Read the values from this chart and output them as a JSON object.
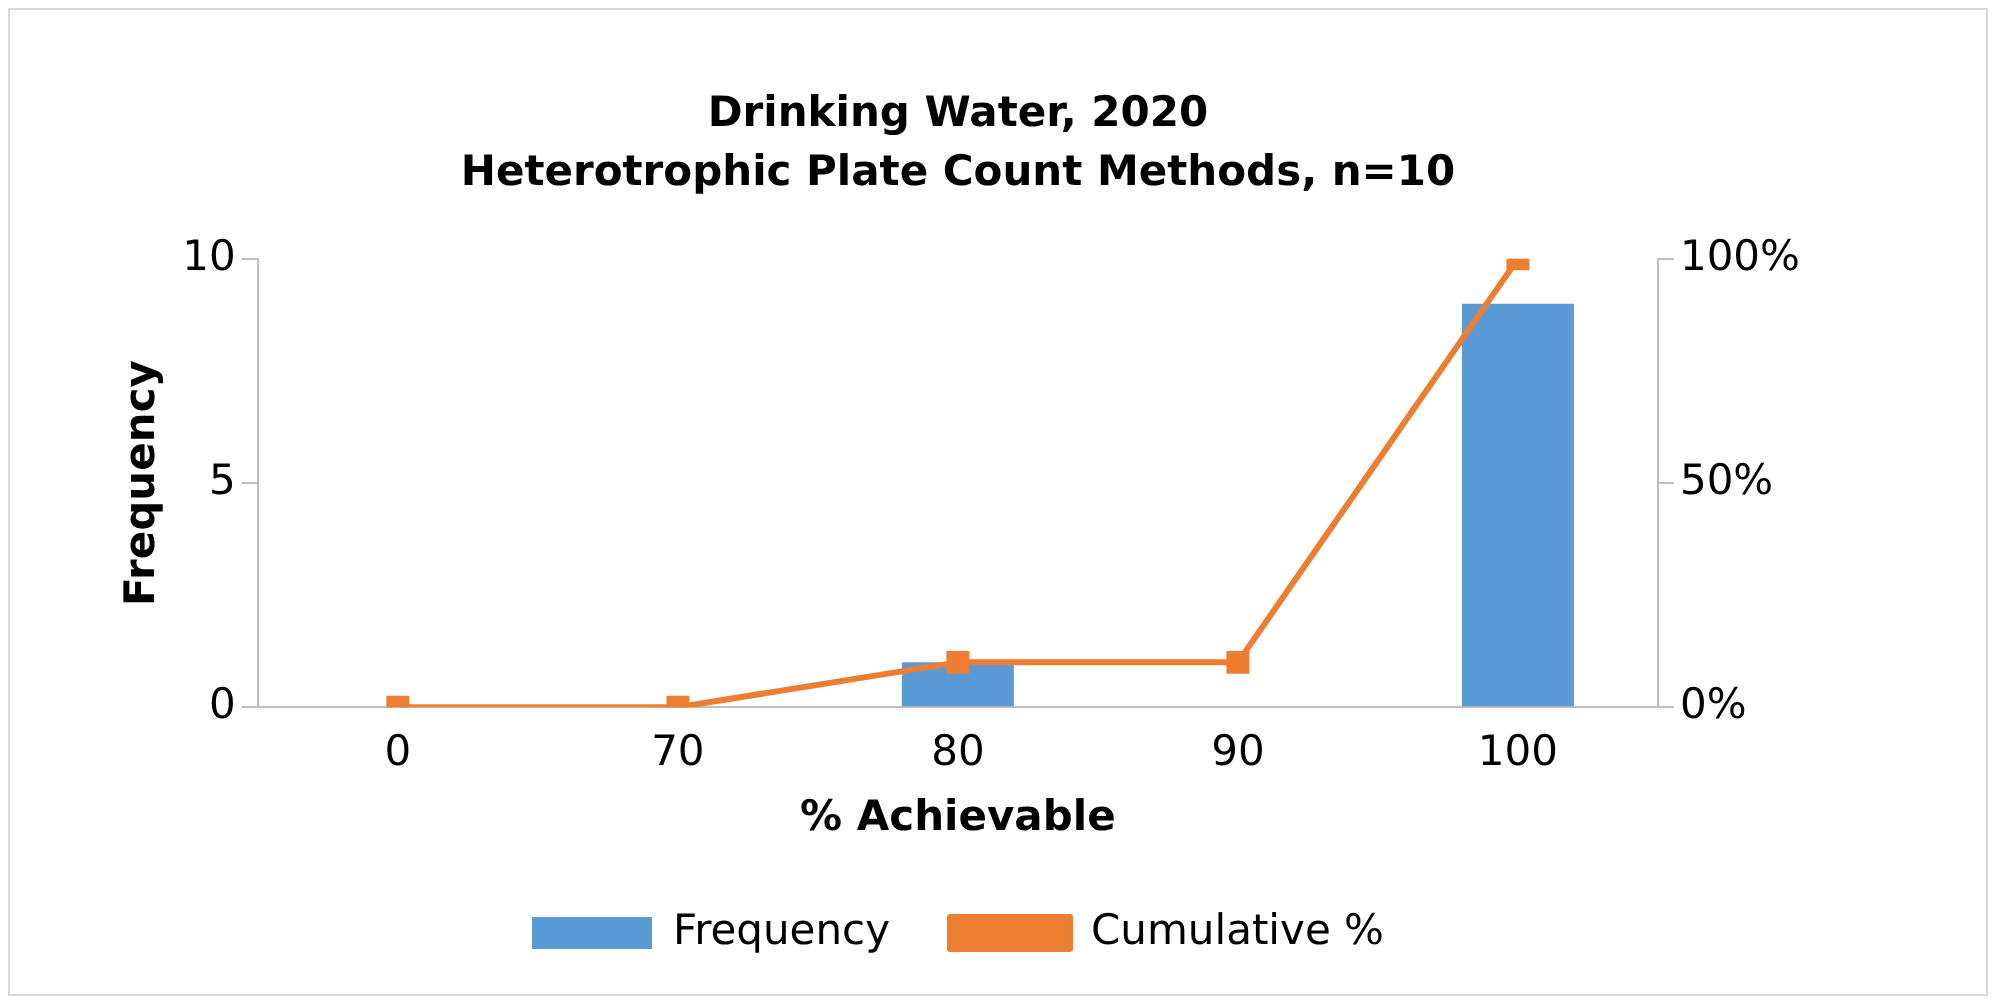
{
  "chart_data": {
    "type": "bar",
    "title": "Drinking Water, 2020",
    "subtitle": "Heterotrophic Plate Count Methods, n=10",
    "xlabel": "% Achievable",
    "ylabel": "Frequency",
    "categories": [
      "0",
      "70",
      "80",
      "90",
      "100"
    ],
    "series": [
      {
        "name": "Frequency",
        "color": "#5b9bd5",
        "values": [
          0,
          0,
          1,
          0,
          9
        ]
      },
      {
        "name": "Cumulative %",
        "type": "line",
        "axis": "y2",
        "color": "#ed7d31",
        "values": [
          0,
          0,
          10,
          10,
          100
        ]
      }
    ],
    "ylim": [
      0,
      10
    ],
    "yticks": [
      0,
      5,
      10
    ],
    "y2lim": [
      0,
      100
    ],
    "y2ticks": [
      {
        "value": 0,
        "label": "0%"
      },
      {
        "value": 50,
        "label": "50%"
      },
      {
        "value": 100,
        "label": "100%"
      }
    ],
    "grid": false,
    "legend": "bottom",
    "marker": "square",
    "line_style": "solid"
  }
}
